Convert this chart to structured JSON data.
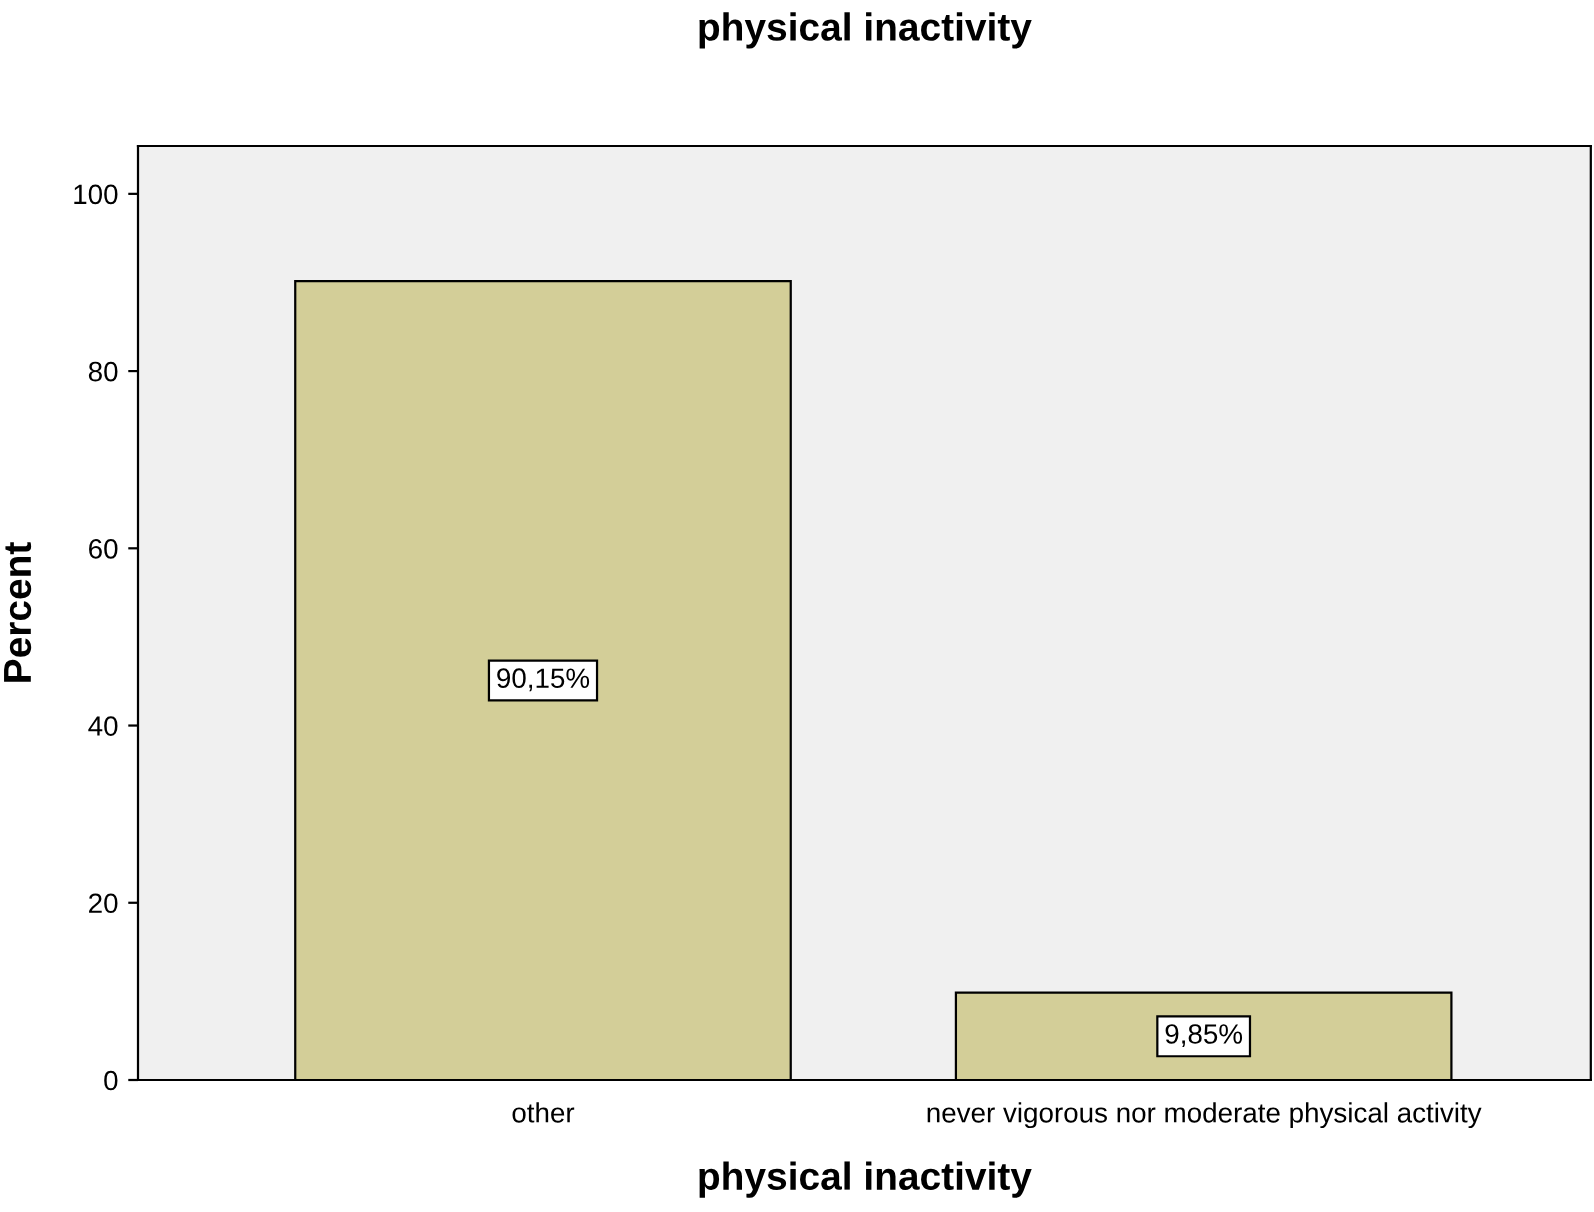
{
  "chart_data": {
    "type": "bar",
    "title": "physical inactivity",
    "xlabel": "physical inactivity",
    "ylabel": "Percent",
    "categories": [
      "other",
      "never vigorous nor moderate physical activity"
    ],
    "values": [
      90.15,
      9.85
    ],
    "value_labels": [
      "90,15%",
      "9,85%"
    ],
    "color": "#d3ce98",
    "ylim": [
      0,
      105.4
    ],
    "yticks": [
      0,
      20,
      40,
      60,
      80,
      100
    ],
    "grid": false,
    "legend": false
  }
}
